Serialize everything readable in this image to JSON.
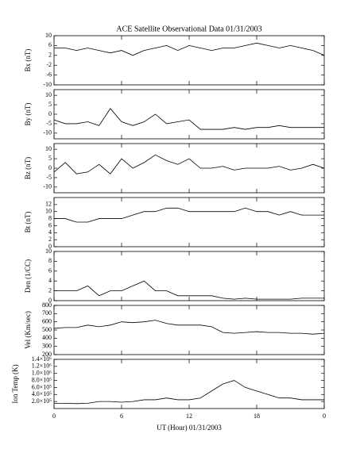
{
  "title": "ACE Satellite Observational Data   01/31/2003",
  "xlabel": "UT (Hour)  01/31/2003",
  "chart_data": [
    {
      "type": "line",
      "ylabel": "Bx (nT)",
      "color": "#000000",
      "x": [
        0,
        1,
        2,
        3,
        4,
        5,
        6,
        7,
        8,
        9,
        10,
        11,
        12,
        13,
        14,
        15,
        16,
        17,
        18,
        19,
        20,
        21,
        22,
        23,
        24
      ],
      "values": [
        5,
        5,
        4,
        5,
        4,
        3,
        4,
        2,
        4,
        5,
        6,
        4,
        6,
        5,
        4,
        5,
        5,
        6,
        7,
        6,
        5,
        6,
        5,
        4,
        2
      ],
      "xlim": [
        0,
        24
      ],
      "xticks": [
        0,
        6,
        12,
        18,
        {
          "value": 24,
          "label": "0"
        }
      ],
      "ylim": [
        -10,
        10
      ],
      "yticks": [
        -10,
        -6,
        -2,
        2,
        6,
        10
      ]
    },
    {
      "type": "line",
      "ylabel": "By (nT)",
      "color": "#000000",
      "x": [
        0,
        1,
        2,
        3,
        4,
        5,
        6,
        7,
        8,
        9,
        10,
        11,
        12,
        13,
        14,
        15,
        16,
        17,
        18,
        19,
        20,
        21,
        22,
        23,
        24
      ],
      "values": [
        -3,
        -5,
        -5,
        -4,
        -6,
        3,
        -4,
        -6,
        -4,
        0,
        -5,
        -4,
        -3,
        -8,
        -8,
        -8,
        -7,
        -8,
        -7,
        -7,
        -6,
        -7,
        -7,
        -7,
        -7
      ],
      "xlim": [
        0,
        24
      ],
      "xticks": [
        0,
        6,
        12,
        18,
        {
          "value": 24,
          "label": "0"
        }
      ],
      "ylim": [
        -13,
        13
      ],
      "yticks": [
        -10,
        -5,
        0,
        5,
        10
      ]
    },
    {
      "type": "line",
      "ylabel": "Bz (nT)",
      "color": "#000000",
      "x": [
        0,
        1,
        2,
        3,
        4,
        5,
        6,
        7,
        8,
        9,
        10,
        11,
        12,
        13,
        14,
        15,
        16,
        17,
        18,
        19,
        20,
        21,
        22,
        23,
        24
      ],
      "values": [
        -2,
        3,
        -3,
        -2,
        2,
        -3,
        5,
        0,
        3,
        7,
        4,
        2,
        5,
        0,
        0,
        1,
        -1,
        0,
        0,
        0,
        1,
        -1,
        0,
        2,
        0
      ],
      "xlim": [
        0,
        24
      ],
      "xticks": [
        0,
        6,
        12,
        18,
        {
          "value": 24,
          "label": "0"
        }
      ],
      "ylim": [
        -13,
        13
      ],
      "yticks": [
        -10,
        -5,
        0,
        5,
        10
      ]
    },
    {
      "type": "line",
      "ylabel": "Bt (nT)",
      "color": "#000000",
      "x": [
        0,
        1,
        2,
        3,
        4,
        5,
        6,
        7,
        8,
        9,
        10,
        11,
        12,
        13,
        14,
        15,
        16,
        17,
        18,
        19,
        20,
        21,
        22,
        23,
        24
      ],
      "values": [
        8,
        8,
        7,
        7,
        8,
        8,
        8,
        9,
        10,
        10,
        11,
        11,
        10,
        10,
        10,
        10,
        10,
        11,
        10,
        10,
        9,
        10,
        9,
        9,
        9
      ],
      "xlim": [
        0,
        24
      ],
      "xticks": [
        0,
        6,
        12,
        18,
        {
          "value": 24,
          "label": "0"
        }
      ],
      "ylim": [
        0,
        14
      ],
      "yticks": [
        0,
        2,
        4,
        6,
        8,
        10,
        12
      ]
    },
    {
      "type": "line",
      "ylabel": "Den (1/CC)",
      "color": "#000000",
      "x": [
        0,
        1,
        2,
        3,
        4,
        5,
        6,
        7,
        8,
        9,
        10,
        11,
        12,
        13,
        14,
        15,
        16,
        17,
        18,
        19,
        20,
        21,
        22,
        23,
        24
      ],
      "values": [
        2,
        2,
        2,
        3,
        1,
        2,
        2,
        3,
        4,
        2,
        2,
        1,
        1,
        1,
        1,
        0.5,
        0.3,
        0.5,
        0.3,
        0.3,
        0.3,
        0.3,
        0.5,
        0.5,
        0.5
      ],
      "xlim": [
        0,
        24
      ],
      "xticks": [
        0,
        6,
        12,
        18,
        {
          "value": 24,
          "label": "0"
        }
      ],
      "ylim": [
        0,
        10
      ],
      "yticks": [
        0,
        2,
        4,
        6,
        8,
        10
      ]
    },
    {
      "type": "line",
      "ylabel": "Vel (Km/sec)",
      "color": "#000000",
      "x": [
        0,
        1,
        2,
        3,
        4,
        5,
        6,
        7,
        8,
        9,
        10,
        11,
        12,
        13,
        14,
        15,
        16,
        17,
        18,
        19,
        20,
        21,
        22,
        23,
        24
      ],
      "values": [
        520,
        530,
        530,
        560,
        540,
        560,
        600,
        590,
        600,
        620,
        580,
        560,
        560,
        560,
        540,
        470,
        460,
        470,
        480,
        470,
        470,
        460,
        460,
        450,
        460
      ],
      "xlim": [
        0,
        24
      ],
      "xticks": [
        0,
        6,
        12,
        18,
        {
          "value": 24,
          "label": "0"
        }
      ],
      "ylim": [
        200,
        800
      ],
      "yticks": [
        200,
        300,
        400,
        500,
        600,
        700,
        800
      ]
    },
    {
      "type": "line",
      "ylabel": "Ion Temp (K)",
      "color": "#000000",
      "x": [
        0,
        1,
        2,
        3,
        4,
        5,
        6,
        7,
        8,
        9,
        10,
        11,
        12,
        13,
        14,
        15,
        16,
        17,
        18,
        19,
        20,
        21,
        22,
        23,
        24
      ],
      "values": [
        150000,
        150000,
        140000,
        150000,
        200000,
        200000,
        180000,
        200000,
        250000,
        250000,
        300000,
        250000,
        250000,
        300000,
        500000,
        700000,
        800000,
        600000,
        500000,
        400000,
        300000,
        300000,
        250000,
        250000,
        250000
      ],
      "xlim": [
        0,
        24
      ],
      "xticks": [
        0,
        6,
        12,
        18,
        {
          "value": 24,
          "label": "0"
        }
      ],
      "ylim": [
        0,
        1400000
      ],
      "yticks": [
        {
          "value": 200000,
          "label": "2.0×10⁵"
        },
        {
          "value": 400000,
          "label": "4.0×10⁵"
        },
        {
          "value": 600000,
          "label": "6.0×10⁵"
        },
        {
          "value": 800000,
          "label": "8.0×10⁵"
        },
        {
          "value": 1000000,
          "label": "1.0×10⁶"
        },
        {
          "value": 1200000,
          "label": "1.2×10⁶"
        },
        {
          "value": 1400000,
          "label": "1.4×10⁶"
        }
      ]
    }
  ]
}
